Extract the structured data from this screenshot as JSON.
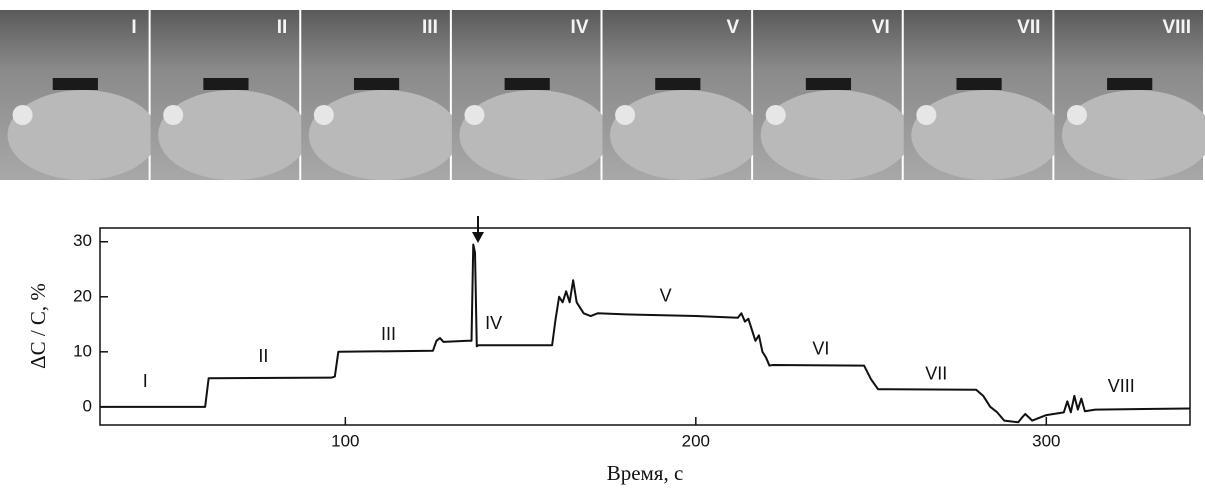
{
  "photos": [
    {
      "label": "I"
    },
    {
      "label": "II"
    },
    {
      "label": "III"
    },
    {
      "label": "IV"
    },
    {
      "label": "V"
    },
    {
      "label": "VI"
    },
    {
      "label": "VII"
    },
    {
      "label": "VIII"
    }
  ],
  "chart_data": {
    "type": "line",
    "xlabel": "Время, с",
    "ylabel": "ΔC / C, %",
    "xlim": [
      30,
      341
    ],
    "ylim": [
      -3.3,
      32.5
    ],
    "xticks": [
      100,
      200,
      300
    ],
    "yticks": [
      0,
      10,
      20,
      30
    ],
    "color": "#111111",
    "x": [
      30,
      59,
      60,
      61,
      96,
      97,
      98,
      125,
      126,
      127,
      128,
      135,
      136,
      136.5,
      137,
      137.5,
      138,
      159,
      160,
      161,
      162,
      163,
      164,
      165,
      166,
      167,
      168,
      170,
      172,
      180,
      200,
      212,
      213,
      214,
      215,
      216,
      217,
      218,
      219,
      220,
      221,
      222,
      248,
      250,
      252,
      280,
      282,
      284,
      286,
      288,
      292,
      293,
      294,
      296,
      300,
      305,
      306,
      307,
      308,
      309,
      310,
      311,
      314,
      341
    ],
    "values": [
      0,
      0,
      0,
      5.2,
      5.3,
      5.5,
      10,
      10.2,
      12,
      12.5,
      11.8,
      12,
      12,
      29.5,
      28,
      11,
      11.2,
      11.2,
      16,
      20,
      19,
      21,
      19,
      23,
      19,
      18,
      17,
      16.5,
      17,
      16.8,
      16.5,
      16.2,
      17,
      15.5,
      16,
      14,
      12,
      13,
      10,
      9,
      7.5,
      7.6,
      7.5,
      5,
      3.2,
      3.1,
      2,
      0,
      -1,
      -2.5,
      -2.8,
      -2,
      -1.3,
      -2.5,
      -1.5,
      -1,
      1,
      -1,
      2,
      -0.5,
      1.5,
      -0.8,
      -0.5,
      -0.3
    ],
    "annotations": [
      {
        "text": "I",
        "x": 42.9,
        "y": 4.5
      },
      {
        "text": "II",
        "x": 76.6,
        "y": 9
      },
      {
        "text": "III",
        "x": 112.3,
        "y": 13
      },
      {
        "text": "IV",
        "x": 142.3,
        "y": 15
      },
      {
        "text": "V",
        "x": 191.4,
        "y": 20
      },
      {
        "text": "VI",
        "x": 235.7,
        "y": 10.4
      },
      {
        "text": "VII",
        "x": 268.6,
        "y": 5.8
      },
      {
        "text": "VIII",
        "x": 321.4,
        "y": 3.6
      }
    ]
  }
}
